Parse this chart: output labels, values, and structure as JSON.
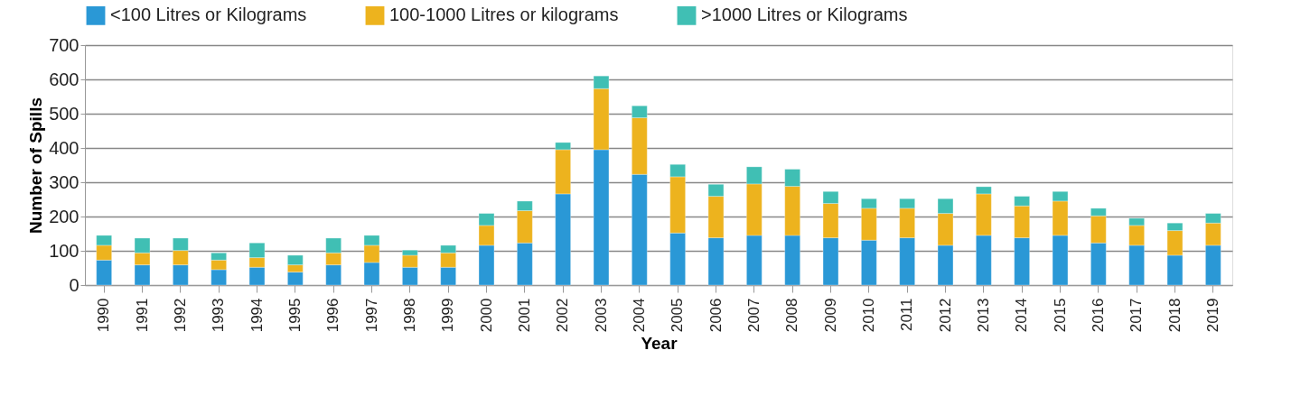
{
  "chart_data": {
    "type": "bar",
    "stacked": true,
    "xlabel": "Year",
    "ylabel": "Number of Spills",
    "categories": [
      "1990",
      "1991",
      "1992",
      "1993",
      "1994",
      "1995",
      "1996",
      "1997",
      "1998",
      "1999",
      "2000",
      "2001",
      "2002",
      "2003",
      "2004",
      "2005",
      "2006",
      "2007",
      "2008",
      "2009",
      "2010",
      "2011",
      "2012",
      "2013",
      "2014",
      "2015",
      "2016",
      "2017",
      "2018",
      "2019"
    ],
    "series": [
      {
        "name": "<100 Litres or Kilograms",
        "color": "#2a98d6",
        "values": [
          73,
          59,
          59,
          45,
          52,
          38,
          59,
          66,
          52,
          52,
          116,
          123,
          266,
          395,
          323,
          152,
          138,
          145,
          145,
          138,
          131,
          138,
          116,
          145,
          138,
          145,
          123,
          116,
          87,
          116
        ]
      },
      {
        "name": "100-1000 Litres or kilograms",
        "color": "#edb31e",
        "values": [
          43,
          35,
          42,
          28,
          28,
          21,
          35,
          50,
          35,
          42,
          58,
          94,
          129,
          178,
          165,
          164,
          121,
          150,
          143,
          100,
          93,
          86,
          93,
          121,
          93,
          100,
          79,
          58,
          72,
          65
        ]
      },
      {
        "name": ">1000 Litres or Kilograms",
        "color": "#40bfb4",
        "values": [
          29,
          43,
          36,
          21,
          43,
          28,
          43,
          29,
          15,
          22,
          35,
          28,
          21,
          37,
          35,
          36,
          35,
          50,
          50,
          35,
          28,
          28,
          43,
          21,
          28,
          28,
          22,
          21,
          22,
          28
        ]
      }
    ],
    "ylim": [
      0,
      700
    ],
    "yticks": [
      0,
      100,
      200,
      300,
      400,
      500,
      600,
      700
    ],
    "grid": "y",
    "legend": "top"
  }
}
